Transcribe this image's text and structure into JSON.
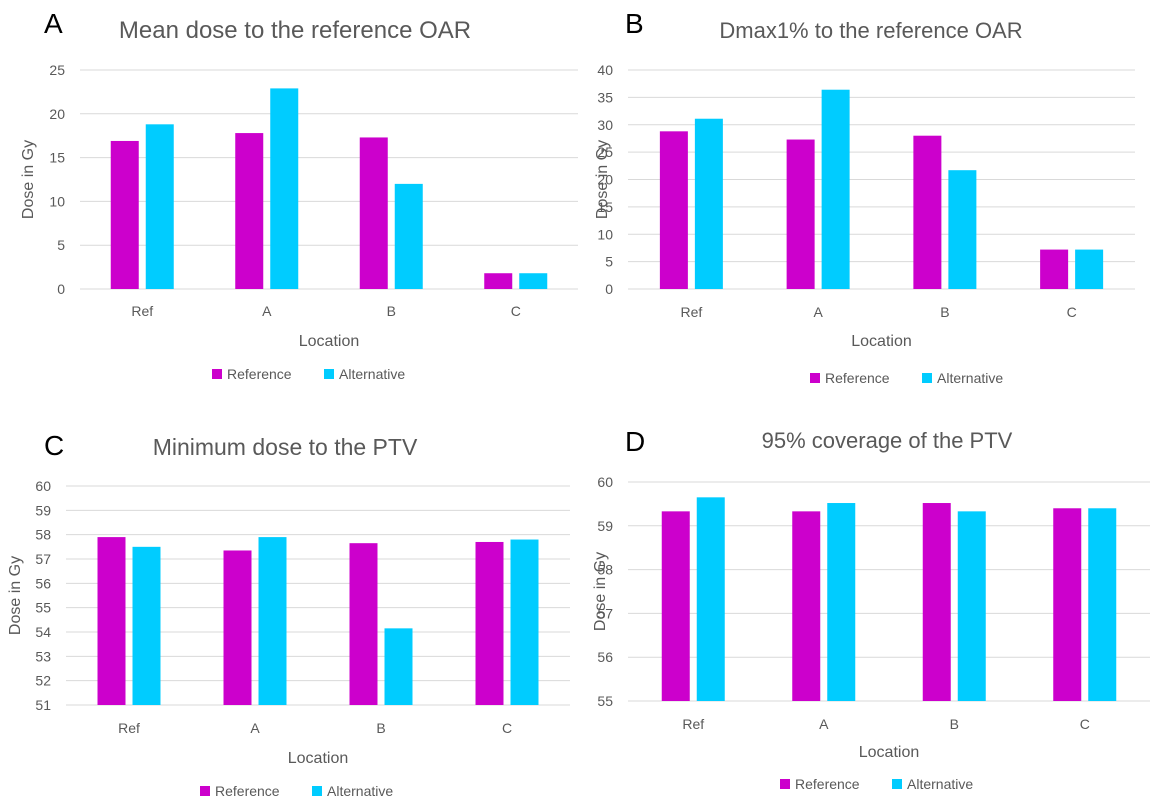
{
  "chart_data": [
    {
      "panel": "A",
      "type": "bar",
      "title": "Mean dose to the reference OAR",
      "xlabel": "Location",
      "ylabel": "Dose in Gy",
      "categories": [
        "Ref",
        "A",
        "B",
        "C"
      ],
      "series": [
        {
          "name": "Reference",
          "values": [
            16.9,
            17.8,
            17.3,
            1.8
          ]
        },
        {
          "name": "Alternative",
          "values": [
            18.8,
            22.9,
            12.0,
            1.8
          ]
        }
      ],
      "ylim": [
        0,
        25
      ],
      "yticks": [
        0,
        5,
        10,
        15,
        20,
        25
      ],
      "grid": true,
      "legend": "bottom"
    },
    {
      "panel": "B",
      "type": "bar",
      "title": "Dmax1% to the reference OAR",
      "xlabel": "Location",
      "ylabel": "Dose in Gy",
      "categories": [
        "Ref",
        "A",
        "B",
        "C"
      ],
      "series": [
        {
          "name": "Reference",
          "values": [
            28.8,
            27.3,
            28.0,
            7.2
          ]
        },
        {
          "name": "Alternative",
          "values": [
            31.1,
            36.4,
            21.7,
            7.2
          ]
        }
      ],
      "ylim": [
        0,
        40
      ],
      "yticks": [
        0,
        5,
        10,
        15,
        20,
        25,
        30,
        35,
        40
      ],
      "grid": true,
      "legend": "bottom"
    },
    {
      "panel": "C",
      "type": "bar",
      "title": "Minimum dose to the PTV",
      "xlabel": "Location",
      "ylabel": "Dose in Gy",
      "categories": [
        "Ref",
        "A",
        "B",
        "C"
      ],
      "series": [
        {
          "name": "Reference",
          "values": [
            57.9,
            57.35,
            57.65,
            57.7
          ]
        },
        {
          "name": "Alternative",
          "values": [
            57.5,
            57.9,
            54.15,
            57.8
          ]
        }
      ],
      "ylim": [
        51,
        60
      ],
      "yticks": [
        51,
        52,
        53,
        54,
        55,
        56,
        57,
        58,
        59,
        60
      ],
      "grid": true,
      "legend": "bottom"
    },
    {
      "panel": "D",
      "type": "bar",
      "title": "95% coverage of the PTV",
      "xlabel": "Location",
      "ylabel": "Dose in Gy",
      "categories": [
        "Ref",
        "A",
        "B",
        "C"
      ],
      "series": [
        {
          "name": "Reference",
          "values": [
            59.33,
            59.33,
            59.52,
            59.4
          ]
        },
        {
          "name": "Alternative",
          "values": [
            59.65,
            59.52,
            59.33,
            59.4
          ]
        }
      ],
      "ylim": [
        55,
        60
      ],
      "yticks": [
        55,
        56,
        57,
        58,
        59,
        60
      ],
      "grid": true,
      "legend": "bottom"
    }
  ],
  "colors": {
    "Reference": "#cc00cc",
    "Alternative": "#00ccff",
    "text": "#595959",
    "grid": "#d9d9d9"
  }
}
